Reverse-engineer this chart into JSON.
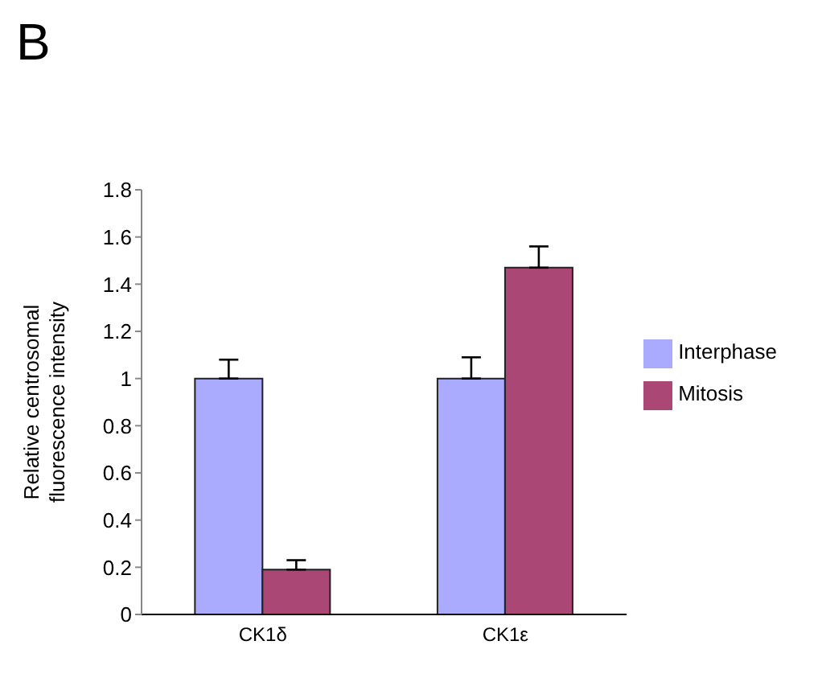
{
  "chart_data": {
    "type": "bar",
    "title": "B",
    "ylabel": "Relative centrosomal fluorescence intensity",
    "categories": [
      "CK1δ",
      "CK1ε"
    ],
    "series": [
      {
        "name": "Interphase",
        "color": "#aaaaff",
        "values": [
          1,
          1
        ],
        "errors": [
          0.08,
          0.09
        ]
      },
      {
        "name": "Mitosis",
        "color": "#aa4774",
        "values": [
          0.19,
          1.47
        ],
        "errors": [
          0.04,
          0.09
        ]
      }
    ],
    "ylim": [
      0,
      1.8
    ],
    "yticks": [
      0,
      0.2,
      0.4,
      0.6,
      0.8,
      1,
      1.2,
      1.4,
      1.6,
      1.8
    ],
    "grid": false,
    "legend": "right"
  }
}
